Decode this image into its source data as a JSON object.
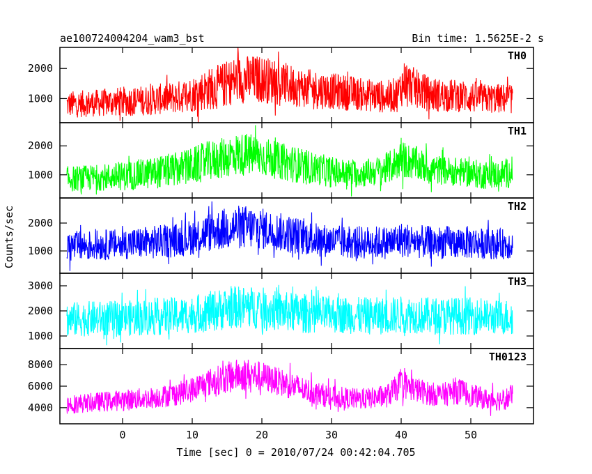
{
  "chart_data": {
    "type": "line",
    "title_left": "ae100724004204_wam3_bst",
    "title_right": "Bin time: 1.5625E-2 s",
    "xlabel": "Time [sec] 0 = 2010/07/24 00:42:04.705",
    "ylabel": "Counts/sec",
    "xlim": [
      -9,
      59
    ],
    "x_ticks": [
      0,
      10,
      20,
      30,
      40,
      50
    ],
    "grid": false,
    "panels": [
      {
        "name": "TH0",
        "color": "#ff0000",
        "ylim": [
          200,
          2700
        ],
        "y_ticks": [
          1000,
          2000
        ],
        "x": [
          -8,
          -4,
          0,
          4,
          8,
          10,
          12,
          14,
          16,
          18,
          20,
          22,
          24,
          26,
          28,
          30,
          32,
          34,
          36,
          38,
          39.5,
          40.5,
          42,
          44,
          46,
          48,
          50,
          52,
          54,
          56
        ],
        "mean": [
          800,
          850,
          900,
          950,
          1050,
          1150,
          1300,
          1400,
          1600,
          1650,
          1650,
          1550,
          1450,
          1350,
          1300,
          1250,
          1200,
          1150,
          1100,
          1050,
          1150,
          1600,
          1350,
          1150,
          1100,
          1100,
          1050,
          1000,
          1000,
          1000
        ],
        "amp": [
          450,
          450,
          500,
          500,
          550,
          600,
          700,
          750,
          800,
          800,
          800,
          750,
          700,
          650,
          650,
          600,
          600,
          550,
          550,
          550,
          600,
          750,
          650,
          600,
          550,
          550,
          550,
          500,
          500,
          500
        ]
      },
      {
        "name": "TH1",
        "color": "#00ff00",
        "ylim": [
          200,
          2800
        ],
        "y_ticks": [
          1000,
          2000
        ],
        "x": [
          -8,
          -4,
          0,
          4,
          8,
          10,
          12,
          14,
          16,
          18,
          20,
          22,
          24,
          26,
          28,
          30,
          32,
          34,
          36,
          38,
          40,
          42,
          44,
          46,
          48,
          50,
          52,
          54,
          56
        ],
        "mean": [
          850,
          900,
          950,
          1050,
          1200,
          1300,
          1450,
          1550,
          1700,
          1700,
          1650,
          1500,
          1400,
          1300,
          1200,
          1100,
          1050,
          1050,
          1100,
          1200,
          1550,
          1400,
          1200,
          1150,
          1100,
          1050,
          1000,
          1000,
          1100
        ],
        "amp": [
          450,
          450,
          500,
          550,
          600,
          650,
          700,
          700,
          750,
          750,
          700,
          650,
          650,
          600,
          550,
          550,
          500,
          500,
          500,
          550,
          650,
          600,
          550,
          500,
          500,
          500,
          500,
          500,
          550
        ]
      },
      {
        "name": "TH2",
        "color": "#0000ff",
        "ylim": [
          200,
          2900
        ],
        "y_ticks": [
          1000,
          2000
        ],
        "x": [
          -8,
          -4,
          0,
          4,
          8,
          10,
          12,
          14,
          16,
          18,
          20,
          22,
          24,
          26,
          28,
          30,
          32,
          34,
          36,
          38,
          40,
          42,
          44,
          46,
          48,
          50,
          52,
          54,
          56
        ],
        "mean": [
          1150,
          1200,
          1250,
          1300,
          1400,
          1500,
          1650,
          1750,
          1850,
          1850,
          1800,
          1700,
          1600,
          1500,
          1400,
          1350,
          1300,
          1300,
          1300,
          1300,
          1400,
          1350,
          1300,
          1300,
          1300,
          1300,
          1250,
          1250,
          1250
        ],
        "amp": [
          550,
          550,
          550,
          600,
          600,
          650,
          700,
          750,
          800,
          800,
          750,
          700,
          700,
          650,
          600,
          600,
          600,
          600,
          600,
          600,
          650,
          600,
          600,
          600,
          600,
          600,
          550,
          550,
          550
        ]
      },
      {
        "name": "TH3",
        "color": "#00ffff",
        "ylim": [
          500,
          3500
        ],
        "y_ticks": [
          1000,
          2000,
          3000
        ],
        "x": [
          -8,
          -4,
          0,
          4,
          8,
          10,
          12,
          14,
          16,
          18,
          20,
          22,
          24,
          26,
          28,
          30,
          32,
          34,
          36,
          38,
          40,
          42,
          44,
          46,
          48,
          50,
          52,
          54,
          56
        ],
        "mean": [
          1650,
          1700,
          1700,
          1750,
          1800,
          1850,
          1950,
          2050,
          2150,
          2150,
          2100,
          2000,
          1950,
          1900,
          1850,
          1850,
          1850,
          1800,
          1800,
          1800,
          1850,
          1850,
          1800,
          1800,
          1800,
          1800,
          1750,
          1750,
          1750
        ],
        "amp": [
          700,
          700,
          700,
          750,
          750,
          750,
          800,
          850,
          850,
          850,
          850,
          800,
          800,
          800,
          750,
          750,
          750,
          750,
          750,
          750,
          750,
          750,
          750,
          750,
          750,
          750,
          700,
          700,
          750
        ]
      },
      {
        "name": "TH0123",
        "color": "#ff00ff",
        "ylim": [
          2500,
          9500
        ],
        "y_ticks": [
          4000,
          6000,
          8000
        ],
        "x": [
          -8,
          -4,
          0,
          4,
          8,
          10,
          12,
          14,
          16,
          18,
          20,
          22,
          24,
          26,
          28,
          30,
          32,
          34,
          36,
          38,
          40,
          42,
          44,
          46,
          48,
          50,
          52,
          54,
          56
        ],
        "mean": [
          4300,
          4500,
          4700,
          4900,
          5300,
          5700,
          6300,
          6600,
          7000,
          7100,
          6900,
          6500,
          6100,
          5700,
          5300,
          5000,
          4900,
          4800,
          4900,
          5100,
          6200,
          5700,
          5300,
          5200,
          5600,
          5200,
          4800,
          4700,
          5000
        ],
        "amp": [
          900,
          900,
          1000,
          1000,
          1100,
          1200,
          1300,
          1400,
          1500,
          1500,
          1400,
          1300,
          1300,
          1200,
          1100,
          1100,
          1000,
          1000,
          1000,
          1100,
          1300,
          1200,
          1100,
          1100,
          1300,
          1100,
          1000,
          1000,
          1100
        ]
      }
    ]
  }
}
